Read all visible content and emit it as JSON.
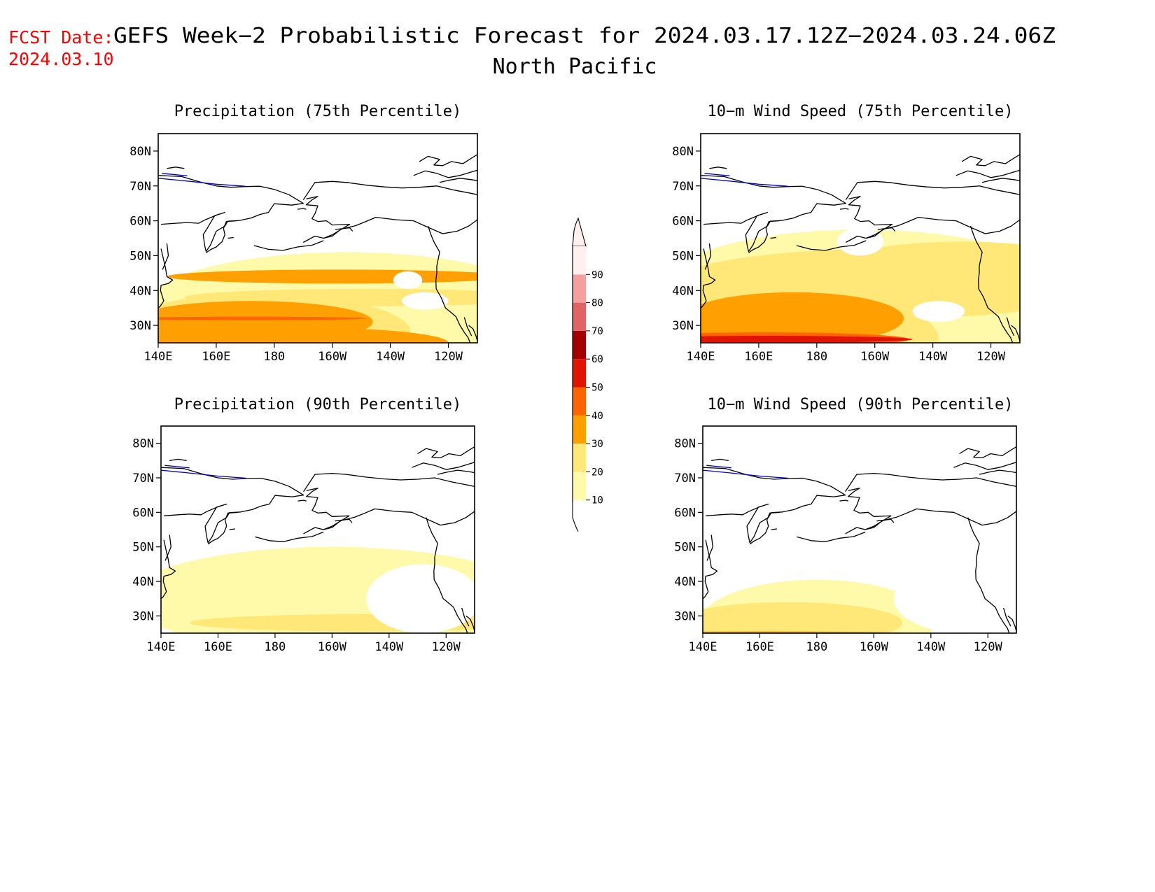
{
  "header": {
    "fcst_label": "FCST Date:",
    "fcst_date": "2024.03.10",
    "title_line1": "GEFS Week−2 Probabilistic Forecast for 2024.03.17.12Z−2024.03.24.06Z",
    "title_line2": "North Pacific"
  },
  "colors": {
    "c10": "#fffaaa",
    "c20": "#ffe878",
    "c30": "#ffa000",
    "c40": "#ff6400",
    "c50": "#e11400",
    "c60": "#a50000",
    "c70": "#e16464",
    "c80": "#f5a0a0",
    "c90": "#fff0f0",
    "coast": "#000000",
    "lake": "#0000cc",
    "fcst": "#ff0000"
  },
  "colorbar": {
    "labels": [
      "10",
      "20",
      "30",
      "40",
      "50",
      "60",
      "70",
      "80",
      "90"
    ]
  },
  "map_axes": {
    "lon_labels": [
      "140E",
      "160E",
      "180",
      "160W",
      "140W",
      "120W"
    ],
    "lat_labels": [
      "80N",
      "70N",
      "60N",
      "50N",
      "40N",
      "30N"
    ]
  },
  "panels": [
    {
      "title": "Precipitation (75th Percentile)",
      "fields": [
        {
          "level": 1,
          "blobs": [
            [
              205,
              -35,
              -70,
              32
            ],
            [
              165,
              -30,
              -40,
              20
            ],
            [
              215,
              -10,
              -60,
              18
            ]
          ]
        },
        {
          "level": 2,
          "blobs": [
            [
              175,
              -28,
              -52,
              22
            ],
            [
              205,
              -20,
              -57,
              8
            ],
            [
              212,
              -38,
              -63,
              5
            ]
          ]
        },
        {
          "level": 3,
          "blobs": [
            [
              172,
              -31,
              -42,
              12
            ],
            [
              185,
              -25,
              -55,
              9
            ],
            [
              202,
              -44,
              -59,
              4
            ]
          ]
        },
        {
          "level": 4,
          "blobs": [
            [
              171,
              -32,
              -41,
              1
            ]
          ]
        }
      ],
      "clear": [
        [
          232,
          -37,
          -8,
          5
        ],
        [
          226,
          -43,
          -5,
          5
        ],
        [
          148,
          -77,
          -11,
          6
        ]
      ]
    },
    {
      "title": "10−m Wind Speed (75th Percentile)",
      "fields": [
        {
          "level": 1,
          "blobs": [
            [
              195,
              -40,
              -70,
              35
            ],
            [
              215,
              -20,
              -65,
              20
            ],
            [
              178,
              -28,
              -39,
              26
            ]
          ]
        },
        {
          "level": 2,
          "blobs": [
            [
              175,
              -26,
              -47,
              27
            ],
            [
              205,
              -42,
              -75,
              20
            ],
            [
              230,
              -50,
              -35,
              8
            ]
          ]
        },
        {
          "level": 3,
          "blobs": [
            [
              172,
              -32,
              -38,
              15
            ],
            [
              178,
              -12,
              -54,
              20
            ],
            [
              209,
              -10,
              -71,
              10
            ],
            [
              162,
              -24,
              -48,
              6
            ]
          ]
        },
        {
          "level": 4,
          "blobs": [
            [
              162,
              -26,
              -50,
              4
            ],
            [
              210,
              -7,
              -71,
              5
            ]
          ]
        },
        {
          "level": 5,
          "blobs": [
            [
              163,
              -26,
              -50,
              2
            ],
            [
              175,
              -22,
              -48,
              2
            ]
          ]
        }
      ],
      "clear": [
        [
          222,
          -34,
          -9,
          6
        ],
        [
          148,
          -76,
          -11,
          6
        ],
        [
          195,
          -54,
          -8,
          8
        ]
      ]
    },
    {
      "title": "Precipitation (90th Percentile)",
      "fields": [
        {
          "level": 1,
          "blobs": [
            [
              200,
              -35,
              -72,
              30
            ],
            [
              222,
              -10,
              -62,
              15
            ],
            [
              180,
              -30,
              -34,
              20
            ]
          ]
        },
        {
          "level": 2,
          "blobs": [
            [
              212,
              -28,
              -62,
              5
            ]
          ]
        }
      ],
      "clear": [
        [
          232,
          -35,
          -20,
          20
        ],
        [
          165,
          -10,
          -64,
          30
        ],
        [
          140,
          -13,
          -46,
          20
        ]
      ]
    },
    {
      "title": "10−m Wind Speed (90th Percentile)",
      "fields": [
        {
          "level": 1,
          "blobs": [
            [
              180,
              -28,
              -41,
              25
            ],
            [
              215,
              -10,
              -69,
              12
            ],
            [
              178,
              -6,
              -58,
              15
            ]
          ]
        },
        {
          "level": 2,
          "blobs": [
            [
              170,
              -28,
              -40,
              12
            ],
            [
              212,
              -6,
              -69,
              4
            ]
          ]
        },
        {
          "level": 3,
          "blobs": [
            [
              162,
              -25,
              -50,
              1
            ]
          ]
        }
      ],
      "clear": [
        [
          232,
          -35,
          -25,
          20
        ],
        [
          200,
          -18,
          -64,
          10
        ]
      ]
    }
  ]
}
